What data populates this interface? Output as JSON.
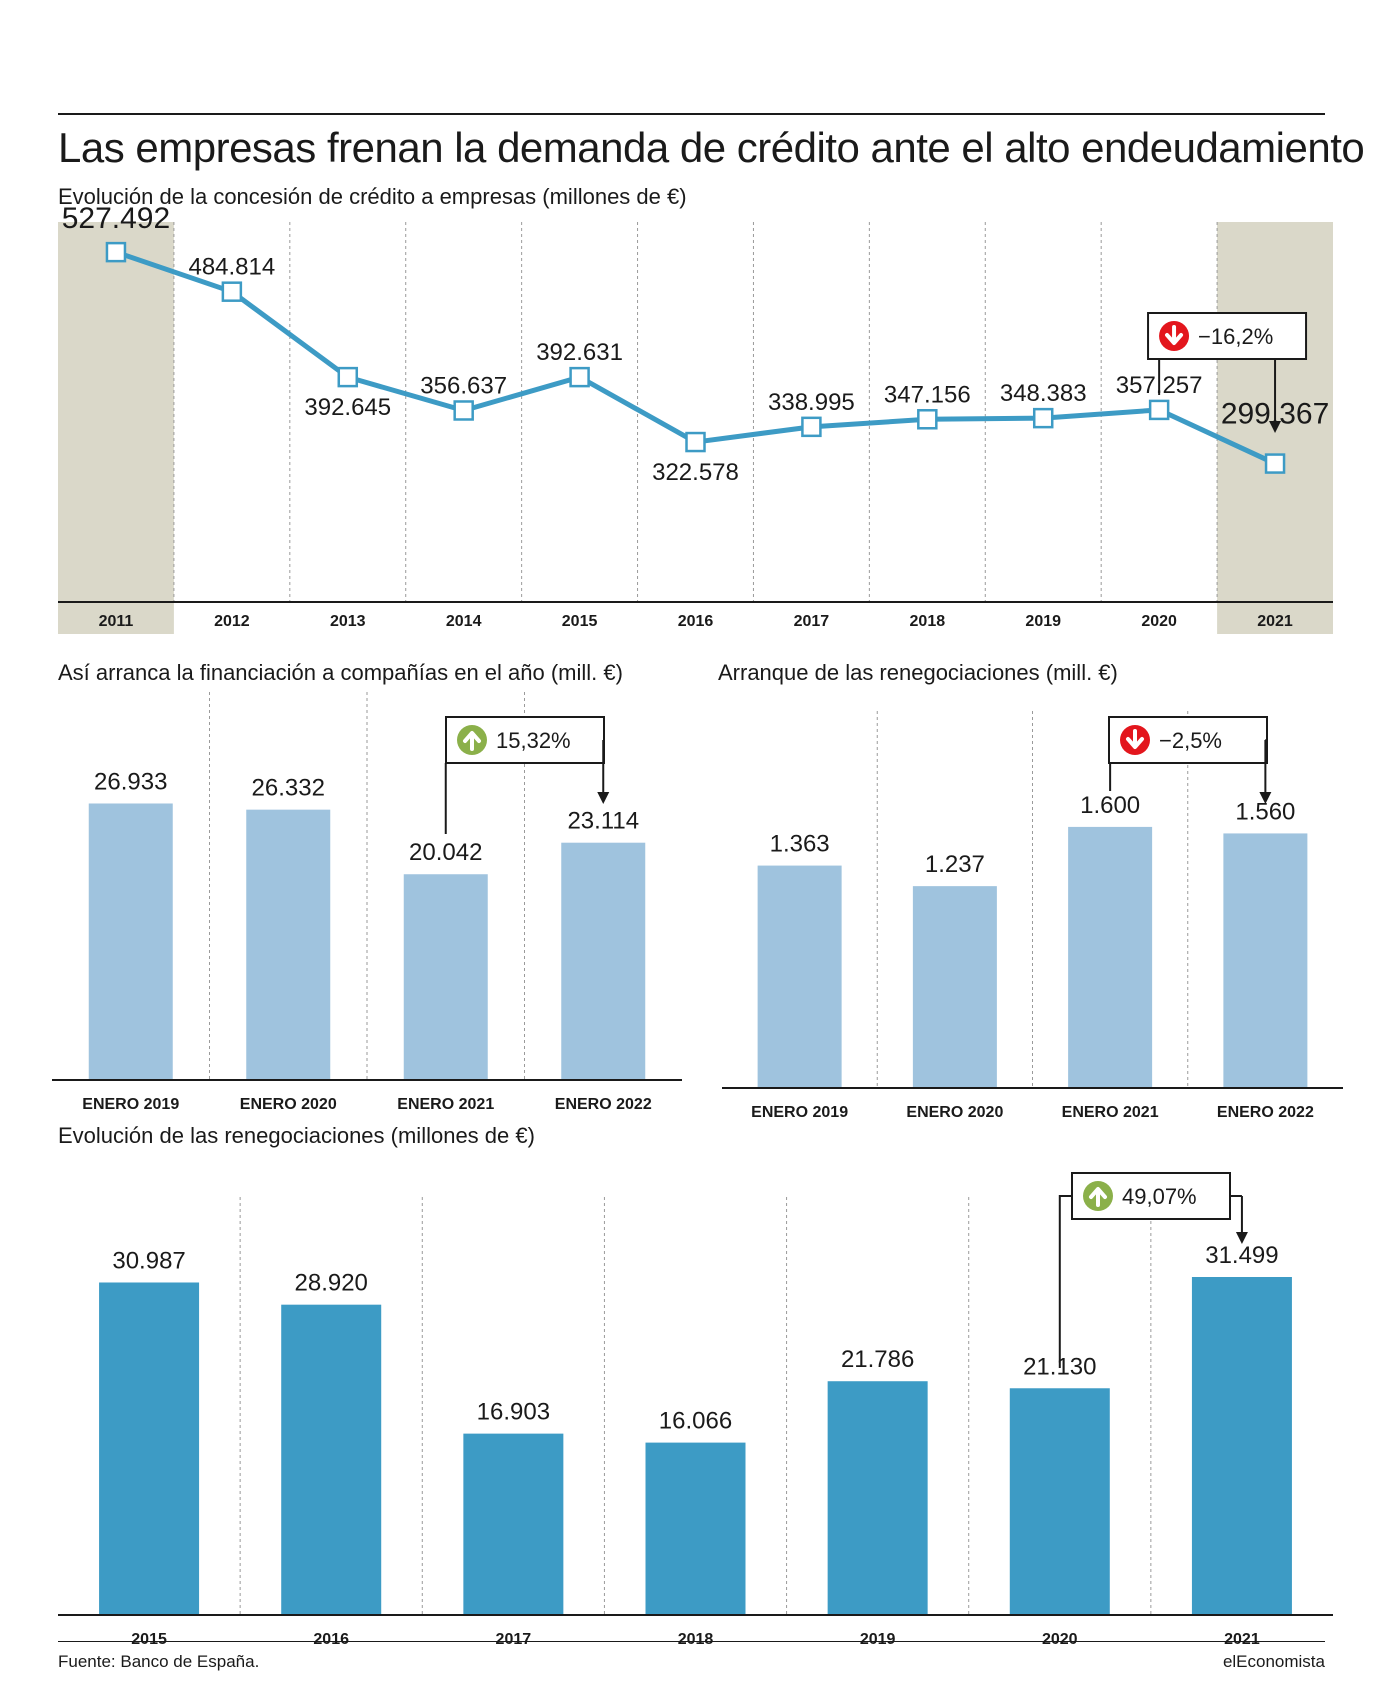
{
  "title": "Las empresas frenan la demanda de crédito ante el alto endeudamiento",
  "source": "Fuente: Banco de España.",
  "brand": "elEconomista",
  "colors": {
    "line": "#3d9bc5",
    "highlight_band": "#dad8c9",
    "bar_light": "#9fc3de",
    "bar_dark": "#3d9bc5",
    "down_badge": "#e3161d",
    "up_badge": "#8bb04a"
  },
  "chart_data": [
    {
      "id": "credito",
      "type": "line",
      "title": "Evolución de la concesión de crédito a empresas (millones de €)",
      "categories": [
        "2011",
        "2012",
        "2013",
        "2014",
        "2015",
        "2016",
        "2017",
        "2018",
        "2019",
        "2020",
        "2021"
      ],
      "values": [
        527492,
        484814,
        392645,
        356637,
        392631,
        322578,
        338995,
        347156,
        348383,
        357257,
        299367
      ],
      "labels": [
        "527.492",
        "484.814",
        "392.645",
        "356.637",
        "392.631",
        "322.578",
        "338.995",
        "347.156",
        "348.383",
        "357.257",
        "299.367"
      ],
      "highlighted": [
        "2011",
        "2021"
      ],
      "ylim": [
        150000,
        560000
      ],
      "annotation": {
        "text": "−16,2%",
        "direction": "down",
        "from": "2020",
        "to": "2021"
      }
    },
    {
      "id": "financiacion",
      "type": "bar",
      "title": "Así arranca la financiación a compañías en el año (mill. €)",
      "categories": [
        "ENERO 2019",
        "ENERO 2020",
        "ENERO 2021",
        "ENERO 2022"
      ],
      "values": [
        26933,
        26332,
        20042,
        23114
      ],
      "labels": [
        "26.933",
        "26.332",
        "20.042",
        "23.114"
      ],
      "ylim": [
        0,
        30000
      ],
      "annotation": {
        "text": "15,32%",
        "direction": "up",
        "from": "ENERO 2021",
        "to": "ENERO 2022"
      }
    },
    {
      "id": "arranque",
      "type": "bar",
      "title": "Arranque de las renegociaciones (mill. €)",
      "categories": [
        "ENERO 2019",
        "ENERO 2020",
        "ENERO 2021",
        "ENERO 2022"
      ],
      "values": [
        1363,
        1237,
        1600,
        1560
      ],
      "labels": [
        "1.363",
        "1.237",
        "1.600",
        "1.560"
      ],
      "ylim": [
        0,
        1820
      ],
      "annotation": {
        "text": "−2,5%",
        "direction": "down",
        "from": "ENERO 2021",
        "to": "ENERO 2022"
      }
    },
    {
      "id": "renegociaciones",
      "type": "bar",
      "title": "Evolución de las renegociaciones (millones de €)",
      "categories": [
        "2015",
        "2016",
        "2017",
        "2018",
        "2019",
        "2020",
        "2021"
      ],
      "values": [
        30987,
        28920,
        16903,
        16066,
        21786,
        21130,
        31499
      ],
      "labels": [
        "30.987",
        "28.920",
        "16.903",
        "16.066",
        "21.786",
        "21.130",
        "31.499"
      ],
      "ylim": [
        0,
        31499
      ],
      "annotation": {
        "text": "49,07%",
        "direction": "up",
        "from": "2020",
        "to": "2021"
      }
    }
  ]
}
